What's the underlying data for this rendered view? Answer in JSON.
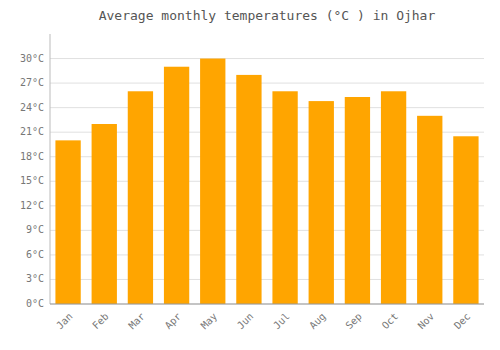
{
  "chart_data": {
    "type": "bar",
    "title": "Average monthly temperatures (°C ) in Ojhar",
    "categories": [
      "Jan",
      "Feb",
      "Mar",
      "Apr",
      "May",
      "Jun",
      "Jul",
      "Aug",
      "Sep",
      "Oct",
      "Nov",
      "Dec"
    ],
    "values": [
      20.0,
      22.0,
      26.0,
      29.0,
      30.0,
      28.0,
      26.0,
      24.8,
      25.3,
      26.0,
      23.0,
      20.5
    ],
    "color": "#FFA500",
    "ylim": [
      0,
      33
    ],
    "yticks": [
      {
        "value": 0,
        "label": "0°C"
      },
      {
        "value": 3,
        "label": "3°C"
      },
      {
        "value": 6,
        "label": "6°C"
      },
      {
        "value": 9,
        "label": "9°C"
      },
      {
        "value": 12,
        "label": "12°C"
      },
      {
        "value": 15,
        "label": "15°C"
      },
      {
        "value": 18,
        "label": "18°C"
      },
      {
        "value": 21,
        "label": "21°C"
      },
      {
        "value": 24,
        "label": "24°C"
      },
      {
        "value": 27,
        "label": "27°C"
      },
      {
        "value": 30,
        "label": "30°C"
      }
    ],
    "grid": true
  }
}
